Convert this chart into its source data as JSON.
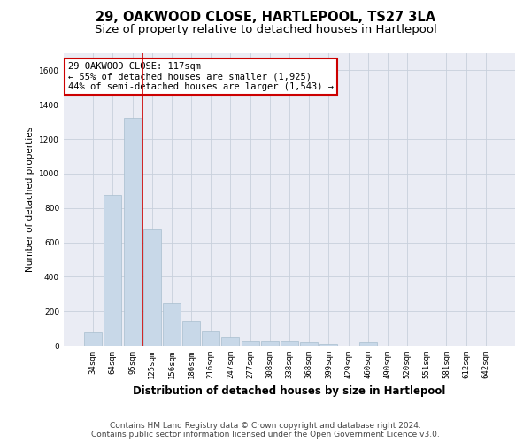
{
  "title": "29, OAKWOOD CLOSE, HARTLEPOOL, TS27 3LA",
  "subtitle": "Size of property relative to detached houses in Hartlepool",
  "xlabel": "Distribution of detached houses by size in Hartlepool",
  "ylabel": "Number of detached properties",
  "categories": [
    "34sqm",
    "64sqm",
    "95sqm",
    "125sqm",
    "156sqm",
    "186sqm",
    "216sqm",
    "247sqm",
    "277sqm",
    "308sqm",
    "338sqm",
    "368sqm",
    "399sqm",
    "429sqm",
    "460sqm",
    "490sqm",
    "520sqm",
    "551sqm",
    "581sqm",
    "612sqm",
    "642sqm"
  ],
  "values": [
    75,
    875,
    1325,
    675,
    245,
    145,
    80,
    50,
    25,
    25,
    25,
    20,
    10,
    0,
    20,
    0,
    0,
    0,
    0,
    0,
    0
  ],
  "bar_color": "#c8d8e8",
  "bar_edge_color": "#a8bece",
  "vline_x_index": 3,
  "vline_color": "#cc0000",
  "annotation_line1": "29 OAKWOOD CLOSE: 117sqm",
  "annotation_line2": "← 55% of detached houses are smaller (1,925)",
  "annotation_line3": "44% of semi-detached houses are larger (1,543) →",
  "annotation_box_color": "#cc0000",
  "ylim": [
    0,
    1700
  ],
  "yticks": [
    0,
    200,
    400,
    600,
    800,
    1000,
    1200,
    1400,
    1600
  ],
  "grid_color": "#c8d0dc",
  "bg_color": "#eaecf4",
  "footer": "Contains HM Land Registry data © Crown copyright and database right 2024.\nContains public sector information licensed under the Open Government Licence v3.0.",
  "title_fontsize": 10.5,
  "subtitle_fontsize": 9.5,
  "xlabel_fontsize": 8.5,
  "ylabel_fontsize": 7.5,
  "footer_fontsize": 6.5,
  "tick_fontsize": 6.5,
  "annot_fontsize": 7.5
}
